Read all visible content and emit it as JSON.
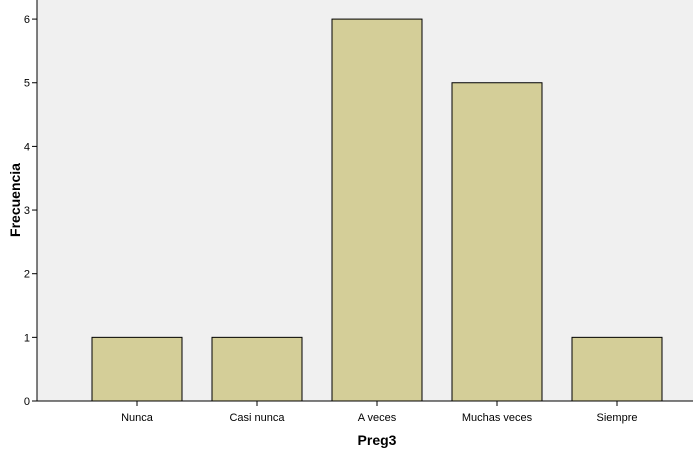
{
  "chart_data": {
    "type": "bar",
    "xlabel": "Preg3",
    "ylabel": "Frecuencia",
    "categories": [
      "Nunca",
      "Casi nunca",
      "A veces",
      "Muchas veces",
      "Siempre"
    ],
    "values": [
      1,
      1,
      6,
      5,
      1
    ],
    "ylim": [
      0,
      6.3
    ],
    "yticks": [
      0,
      1,
      2,
      3,
      4,
      5,
      6
    ],
    "grid": false,
    "colors": {
      "plot_background": "#f0f0f0",
      "bar_fill": "#d4ce98",
      "bar_stroke": "#000000"
    }
  }
}
